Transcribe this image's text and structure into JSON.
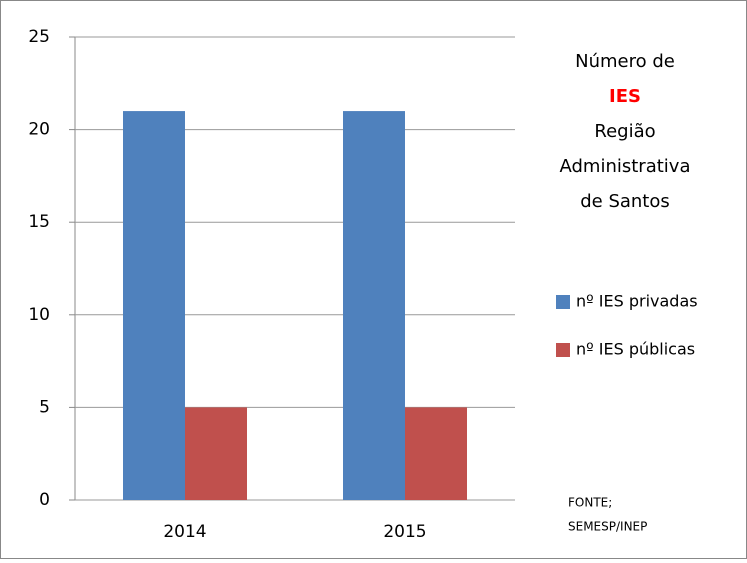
{
  "chart_data": {
    "type": "bar",
    "title_lines": [
      {
        "text": "Número de",
        "color": "#000000"
      },
      {
        "text": "IES",
        "color": "#ff0000"
      },
      {
        "text": "Região",
        "color": "#000000"
      },
      {
        "text": "Administrativa",
        "color": "#000000"
      },
      {
        "text": "de Santos",
        "color": "#000000"
      }
    ],
    "categories": [
      "2014",
      "2015"
    ],
    "series": [
      {
        "name": "nº IES privadas",
        "color": "#4f81bd",
        "values": [
          21,
          21
        ]
      },
      {
        "name": "nº IES públicas",
        "color": "#c0504d",
        "values": [
          5,
          5
        ]
      }
    ],
    "ylim": [
      0,
      25
    ],
    "yticks": [
      0,
      5,
      10,
      15,
      20,
      25
    ],
    "grid": true,
    "legend": "right",
    "source": [
      "FONTE;",
      "SEMESP/INEP"
    ]
  }
}
